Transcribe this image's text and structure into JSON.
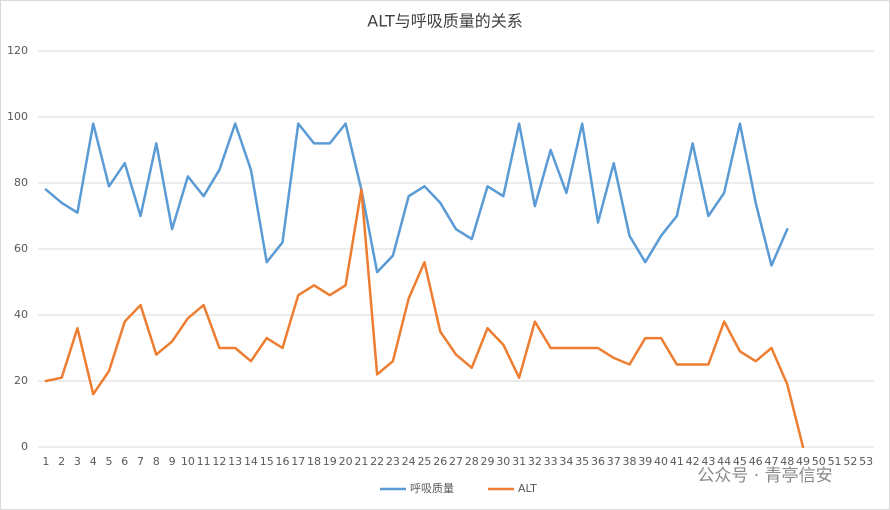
{
  "chart_data": {
    "type": "line",
    "title": "ALT与呼吸质量的关系",
    "categories": [
      "1",
      "2",
      "3",
      "4",
      "5",
      "6",
      "7",
      "8",
      "9",
      "10",
      "11",
      "12",
      "13",
      "14",
      "15",
      "16",
      "17",
      "18",
      "19",
      "20",
      "21",
      "22",
      "23",
      "24",
      "25",
      "26",
      "27",
      "28",
      "29",
      "30",
      "31",
      "32",
      "33",
      "34",
      "35",
      "36",
      "37",
      "38",
      "39",
      "40",
      "41",
      "42",
      "43",
      "44",
      "45",
      "46",
      "47",
      "48",
      "49",
      "50",
      "51",
      "52",
      "53"
    ],
    "series": [
      {
        "name": "呼吸质量",
        "color": "#5b9bd5",
        "values": [
          78,
          74,
          71,
          98,
          79,
          86,
          70,
          92,
          66,
          82,
          76,
          84,
          98,
          84,
          56,
          62,
          98,
          92,
          92,
          98,
          78,
          53,
          58,
          76,
          79,
          74,
          66,
          63,
          79,
          76,
          98,
          73,
          90,
          77,
          98,
          68,
          86,
          64,
          56,
          64,
          70,
          92,
          70,
          77,
          98,
          74,
          55,
          66,
          null,
          null,
          null,
          null,
          null
        ]
      },
      {
        "name": "ALT",
        "color": "#ed7d31",
        "values": [
          20,
          21,
          36,
          16,
          23,
          38,
          43,
          28,
          32,
          39,
          43,
          30,
          30,
          26,
          33,
          30,
          46,
          49,
          46,
          49,
          78,
          22,
          26,
          45,
          56,
          35,
          28,
          24,
          36,
          31,
          21,
          38,
          30,
          30,
          30,
          30,
          27,
          25,
          33,
          33,
          25,
          25,
          25,
          38,
          29,
          26,
          30,
          19,
          0,
          null,
          null,
          null,
          null
        ]
      }
    ],
    "ylim": [
      0,
      120
    ],
    "yticks": [
      0,
      20,
      40,
      60,
      80,
      100,
      120
    ],
    "grid": true,
    "legend": "bottom"
  },
  "watermark": "公众号 · 青亭信安"
}
